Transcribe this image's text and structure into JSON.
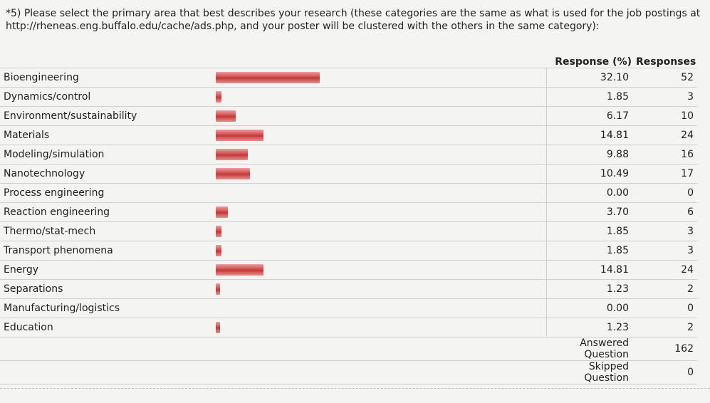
{
  "question": "*5) Please select the primary area that best describes your research (these categories are the same as what is used for the job postings at http://rheneas.eng.buffalo.edu/cache/ads.php, and your poster will be clustered with the others in the same category):",
  "headers": {
    "response_pct": "Response (%)",
    "responses": "Responses"
  },
  "colors": {
    "bar": "#c94545"
  },
  "rows": [
    {
      "label": "Bioengineering",
      "pct": "32.10",
      "count": "52",
      "fraction": 0.321
    },
    {
      "label": "Dynamics/control",
      "pct": "1.85",
      "count": "3",
      "fraction": 0.0185
    },
    {
      "label": "Environment/sustainability",
      "pct": "6.17",
      "count": "10",
      "fraction": 0.0617
    },
    {
      "label": "Materials",
      "pct": "14.81",
      "count": "24",
      "fraction": 0.1481
    },
    {
      "label": "Modeling/simulation",
      "pct": "9.88",
      "count": "16",
      "fraction": 0.0988
    },
    {
      "label": "Nanotechnology",
      "pct": "10.49",
      "count": "17",
      "fraction": 0.1049
    },
    {
      "label": "Process engineering",
      "pct": "0.00",
      "count": "0",
      "fraction": 0.0
    },
    {
      "label": "Reaction engineering",
      "pct": "3.70",
      "count": "6",
      "fraction": 0.037
    },
    {
      "label": "Thermo/stat-mech",
      "pct": "1.85",
      "count": "3",
      "fraction": 0.0185
    },
    {
      "label": "Transport phenomena",
      "pct": "1.85",
      "count": "3",
      "fraction": 0.0185
    },
    {
      "label": "Energy",
      "pct": "14.81",
      "count": "24",
      "fraction": 0.1481
    },
    {
      "label": "Separations",
      "pct": "1.23",
      "count": "2",
      "fraction": 0.0123
    },
    {
      "label": "Manufacturing/logistics",
      "pct": "0.00",
      "count": "0",
      "fraction": 0.0
    },
    {
      "label": "Education",
      "pct": "1.23",
      "count": "2",
      "fraction": 0.0123
    }
  ],
  "summary": {
    "answered_label": "Answered Question",
    "answered_value": "162",
    "skipped_label": "Skipped Question",
    "skipped_value": "0"
  }
}
